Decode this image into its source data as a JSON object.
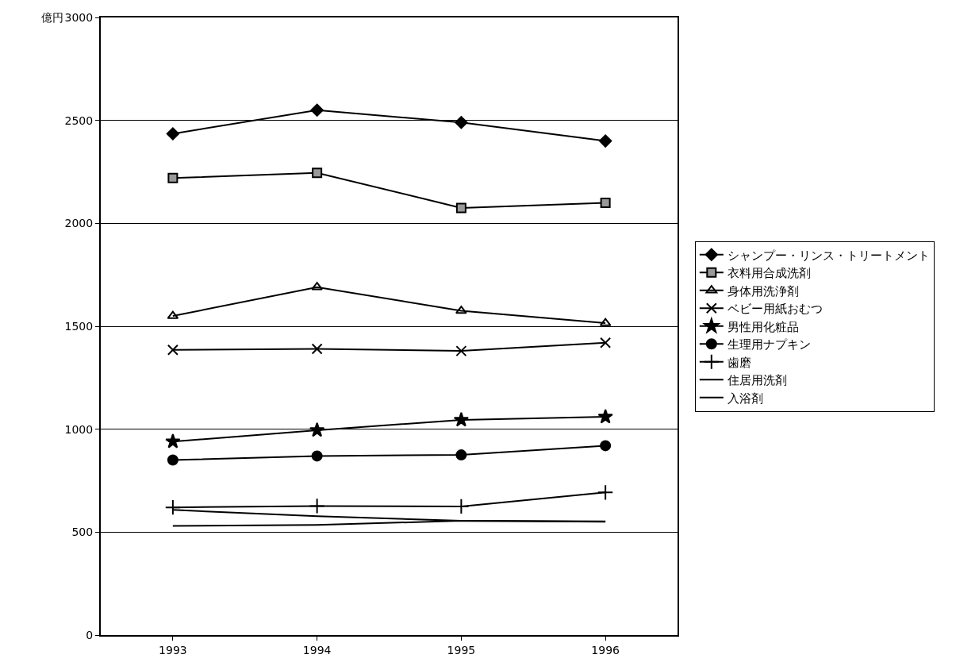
{
  "chart_data": {
    "type": "line",
    "ylabel": "億円",
    "categories": [
      "1993",
      "1994",
      "1995",
      "1996"
    ],
    "ylim": [
      0,
      3000
    ],
    "yticks": [
      0,
      500,
      1000,
      1500,
      2000,
      2500,
      3000
    ],
    "grid": "y",
    "legend": "right",
    "series": [
      {
        "name": "シャンプー・リンス・トリートメント",
        "color": "#000000",
        "marker": "diamond",
        "values": [
          2435,
          2550,
          2490,
          2400
        ]
      },
      {
        "name": "衣料用合成洗剤",
        "color": "#000000",
        "marker": "square",
        "values": [
          2220,
          2245,
          2075,
          2100
        ]
      },
      {
        "name": "身体用洗浄剤",
        "color": "#000000",
        "marker": "triangle",
        "values": [
          1550,
          1690,
          1575,
          1515
        ]
      },
      {
        "name": "ベビー用紙おむつ",
        "color": "#000000",
        "marker": "cross",
        "values": [
          1385,
          1390,
          1380,
          1420
        ]
      },
      {
        "name": "男性用化粧品",
        "color": "#000000",
        "marker": "star",
        "values": [
          940,
          995,
          1045,
          1060
        ]
      },
      {
        "name": "生理用ナプキン",
        "color": "#000000",
        "marker": "circle",
        "values": [
          850,
          870,
          875,
          920
        ]
      },
      {
        "name": "歯磨",
        "color": "#000000",
        "marker": "plus",
        "values": [
          620,
          627,
          625,
          693
        ]
      },
      {
        "name": "住居用洗剤",
        "color": "#000000",
        "marker": "none",
        "values": [
          608,
          577,
          555,
          550
        ]
      },
      {
        "name": "入浴剤",
        "color": "#000000",
        "marker": "none",
        "values": [
          530,
          535,
          555,
          552
        ]
      }
    ]
  }
}
